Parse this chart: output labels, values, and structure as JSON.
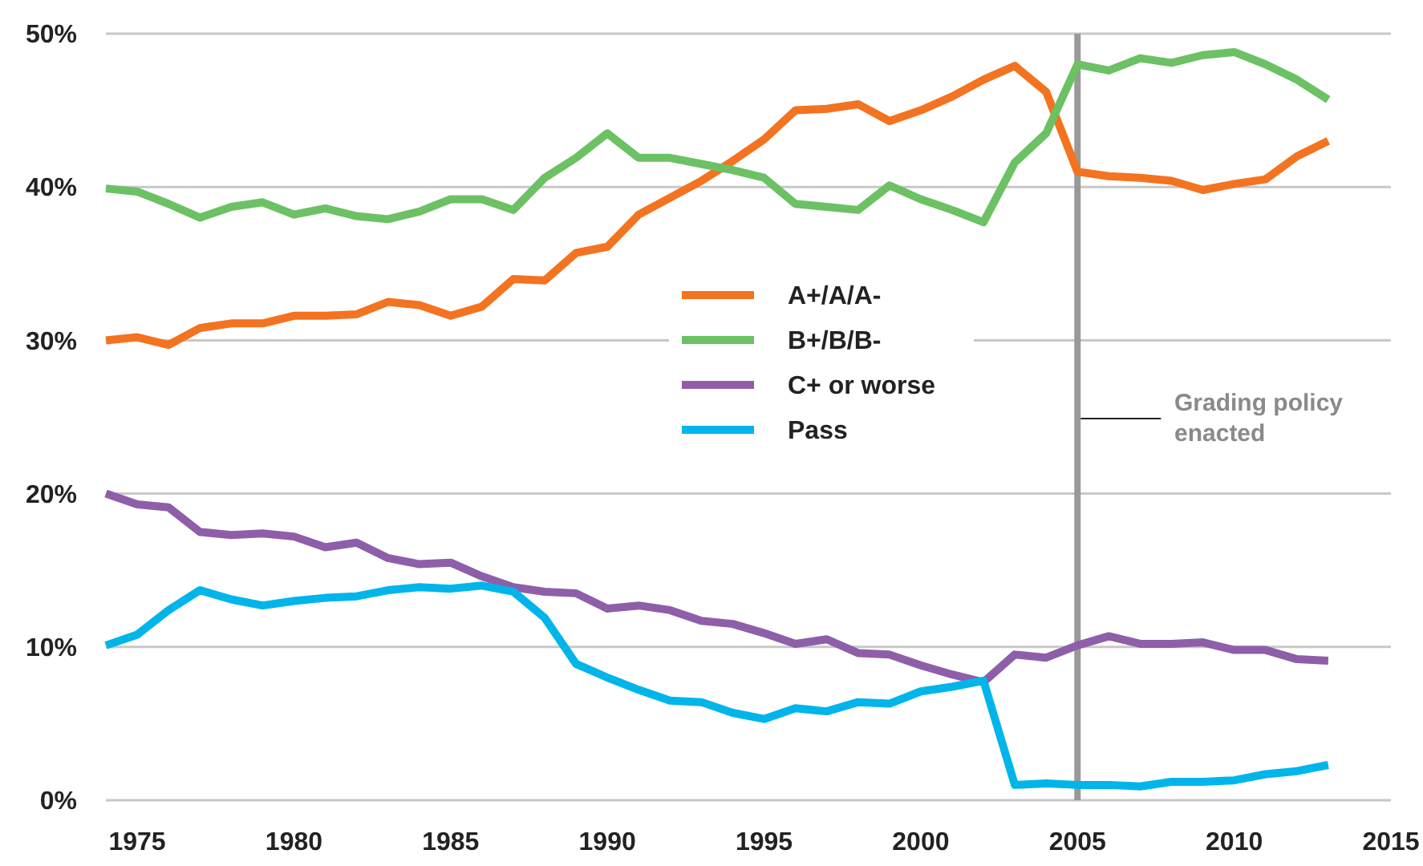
{
  "chart_data": {
    "type": "line",
    "x": [
      1974,
      1975,
      1976,
      1977,
      1978,
      1979,
      1980,
      1981,
      1982,
      1983,
      1984,
      1985,
      1986,
      1987,
      1988,
      1989,
      1990,
      1991,
      1992,
      1993,
      1994,
      1995,
      1996,
      1997,
      1998,
      1999,
      2000,
      2001,
      2002,
      2003,
      2004,
      2005,
      2006,
      2007,
      2008,
      2009,
      2010,
      2011,
      2012,
      2013
    ],
    "series": [
      {
        "name": "A+/A/A-",
        "color": "#f37321",
        "values": [
          30.0,
          30.2,
          29.7,
          30.8,
          31.1,
          31.1,
          31.6,
          31.6,
          31.7,
          32.5,
          32.3,
          31.6,
          32.2,
          34.0,
          33.9,
          35.7,
          36.1,
          38.2,
          39.3,
          40.4,
          41.7,
          43.1,
          45.0,
          45.1,
          45.4,
          44.3,
          45.0,
          45.9,
          47.0,
          47.9,
          46.2,
          41.0,
          40.7,
          40.6,
          40.4,
          39.8,
          40.2,
          40.5,
          42.0,
          43.0
        ]
      },
      {
        "name": "B+/B/B-",
        "color": "#6cc164",
        "values": [
          39.9,
          39.7,
          38.9,
          38.0,
          38.7,
          39.0,
          38.2,
          38.6,
          38.1,
          37.9,
          38.4,
          39.2,
          39.2,
          38.5,
          40.6,
          41.9,
          43.5,
          41.9,
          41.9,
          41.5,
          41.1,
          40.6,
          38.9,
          38.7,
          38.5,
          40.1,
          39.2,
          38.5,
          37.7,
          41.6,
          43.5,
          48.0,
          47.6,
          48.4,
          48.1,
          48.6,
          48.8,
          48.0,
          47.0,
          45.7
        ]
      },
      {
        "name": "C+ or worse",
        "color": "#8e5fa8",
        "values": [
          20.0,
          19.3,
          19.1,
          17.5,
          17.3,
          17.4,
          17.2,
          16.5,
          16.8,
          15.8,
          15.4,
          15.5,
          14.6,
          13.9,
          13.6,
          13.5,
          12.5,
          12.7,
          12.4,
          11.7,
          11.5,
          10.9,
          10.2,
          10.5,
          9.6,
          9.5,
          8.8,
          8.2,
          7.7,
          9.5,
          9.3,
          10.1,
          10.7,
          10.2,
          10.2,
          10.3,
          9.8,
          9.8,
          9.2,
          9.1
        ]
      },
      {
        "name": "Pass",
        "color": "#00b5ea",
        "values": [
          10.1,
          10.8,
          12.4,
          13.7,
          13.1,
          12.7,
          13.0,
          13.2,
          13.3,
          13.7,
          13.9,
          13.8,
          14.0,
          13.6,
          11.9,
          8.9,
          8.0,
          7.2,
          6.5,
          6.4,
          5.7,
          5.3,
          6.0,
          5.8,
          6.4,
          6.3,
          7.1,
          7.4,
          7.8,
          1.0,
          1.1,
          1.0,
          1.0,
          0.9,
          1.2,
          1.2,
          1.3,
          1.7,
          1.9,
          2.3
        ]
      }
    ],
    "xlim": [
      1974,
      2015
    ],
    "xticks": [
      1975,
      1980,
      1985,
      1990,
      1995,
      2000,
      2005,
      2010,
      2015
    ],
    "ylim": [
      0,
      50
    ],
    "yticks": [
      {
        "value": 0,
        "label": "0%"
      },
      {
        "value": 10,
        "label": "10%"
      },
      {
        "value": 20,
        "label": "20%"
      },
      {
        "value": 30,
        "label": "30%"
      },
      {
        "value": 40,
        "label": "40%"
      },
      {
        "value": 50,
        "label": "50%"
      }
    ],
    "grid": "y",
    "legend": "center",
    "marker": "none",
    "line_style": "solid",
    "ref_lines": [
      {
        "axis": "x",
        "value": 2005,
        "label": "Grading policy enacted",
        "color": "#999999"
      }
    ]
  }
}
